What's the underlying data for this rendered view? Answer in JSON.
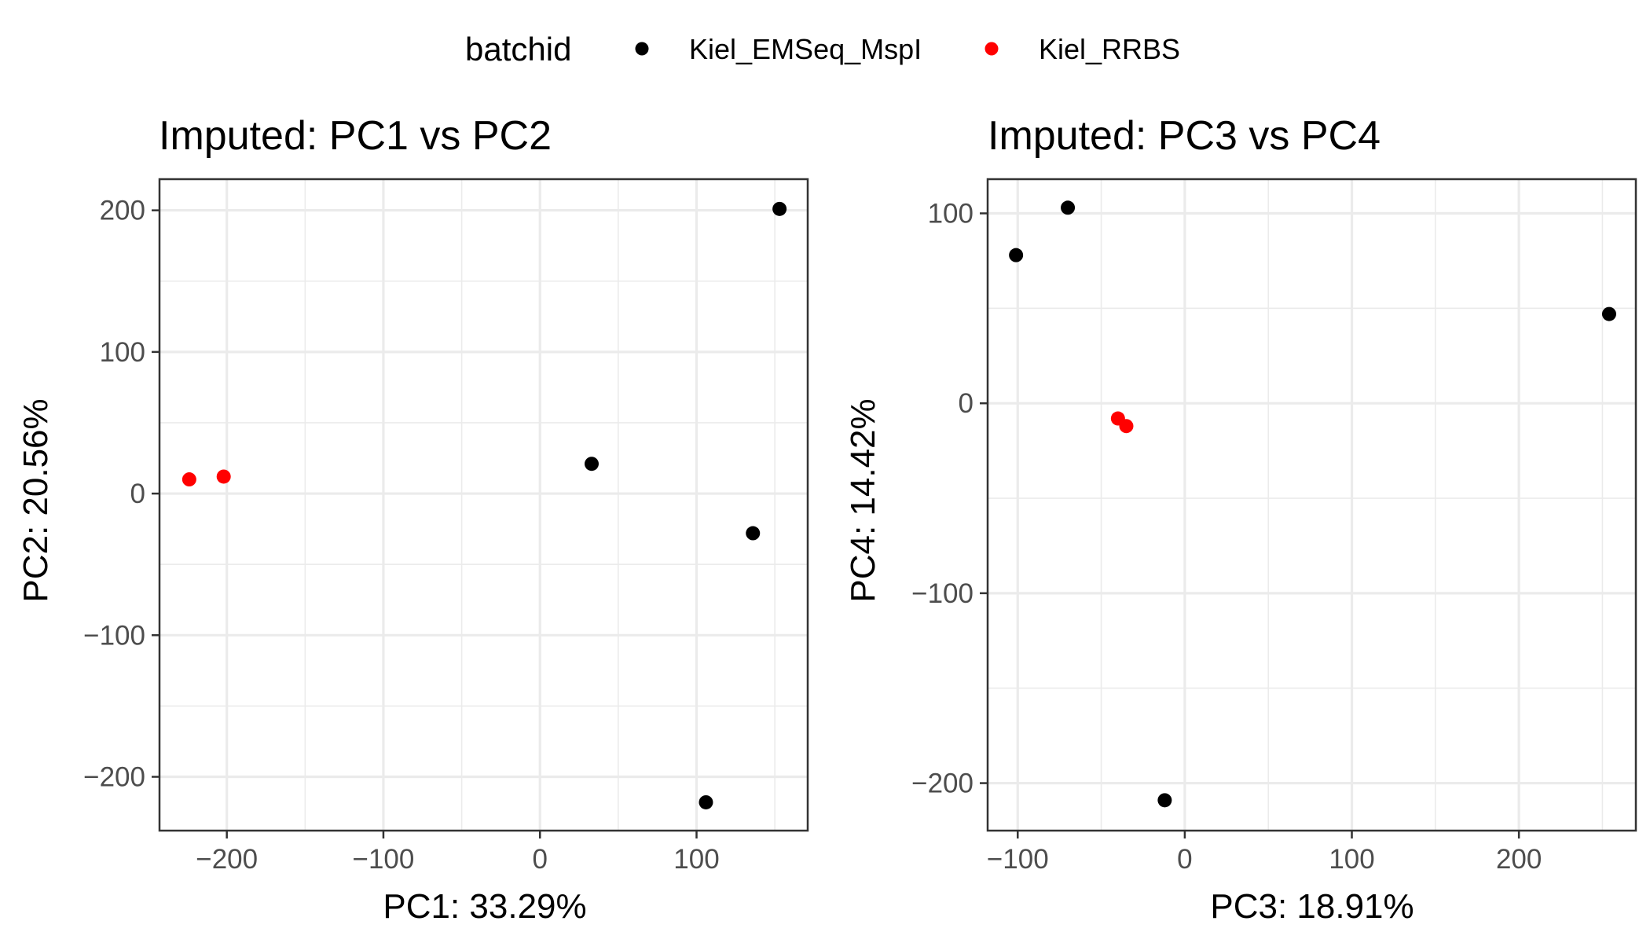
{
  "legend": {
    "title": "batchid",
    "items": [
      {
        "label": "Kiel_EMSeq_MspI",
        "color": "#000000"
      },
      {
        "label": "Kiel_RRBS",
        "color": "#ff0000"
      }
    ]
  },
  "chart_data": [
    {
      "type": "scatter",
      "title": "Imputed: PC1 vs PC2",
      "xlabel": "PC1: 33.29%",
      "ylabel": "PC2: 20.56%",
      "xlim": [
        -243,
        171
      ],
      "ylim": [
        -238,
        222
      ],
      "xticks": [
        -200,
        -100,
        0,
        100
      ],
      "xtick_labels": [
        "−200",
        "−100",
        "0",
        "100"
      ],
      "yticks": [
        -200,
        -100,
        0,
        100,
        200
      ],
      "ytick_labels": [
        "−200",
        "−100",
        "0",
        "100",
        "200"
      ],
      "grid": true,
      "series": [
        {
          "name": "Kiel_EMSeq_MspI",
          "color": "#000000",
          "points": [
            [
              33,
              21
            ],
            [
              153,
              201
            ],
            [
              136,
              -28
            ],
            [
              106,
              -218
            ]
          ]
        },
        {
          "name": "Kiel_RRBS",
          "color": "#ff0000",
          "points": [
            [
              -224,
              10
            ],
            [
              -202,
              12
            ]
          ]
        }
      ]
    },
    {
      "type": "scatter",
      "title": "Imputed: PC3 vs PC4",
      "xlabel": "PC3: 18.91%",
      "ylabel": "PC4: 14.42%",
      "xlim": [
        -118,
        270
      ],
      "ylim": [
        -225,
        118
      ],
      "xticks": [
        -100,
        0,
        100,
        200
      ],
      "xtick_labels": [
        "−100",
        "0",
        "100",
        "200"
      ],
      "yticks": [
        -200,
        -100,
        0,
        100
      ],
      "ytick_labels": [
        "−200",
        "−100",
        "0",
        "100"
      ],
      "grid": true,
      "series": [
        {
          "name": "Kiel_EMSeq_MspI",
          "color": "#000000",
          "points": [
            [
              -101,
              78
            ],
            [
              -70,
              103
            ],
            [
              254,
              47
            ],
            [
              -12,
              -209
            ]
          ]
        },
        {
          "name": "Kiel_RRBS",
          "color": "#ff0000",
          "points": [
            [
              -40,
              -8
            ],
            [
              -35,
              -12
            ]
          ]
        }
      ]
    }
  ]
}
